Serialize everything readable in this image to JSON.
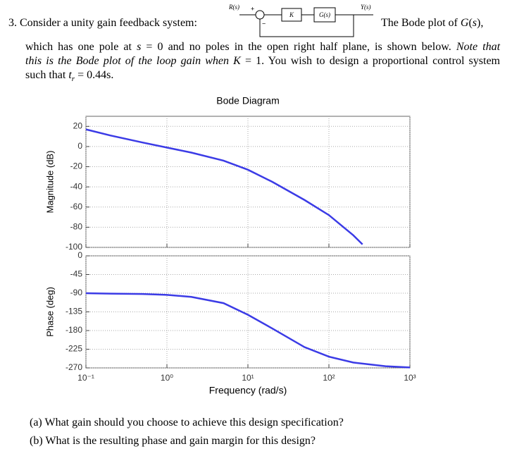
{
  "problem": {
    "number_line": [
      {
        "text": "3. Consider a unity gain feedback system:",
        "style": "normal"
      }
    ],
    "after_diagram": [
      {
        "text": "The Bode plot of ",
        "style": "normal"
      },
      {
        "text": "G",
        "style": "italic"
      },
      {
        "text": "(",
        "style": "normal"
      },
      {
        "text": "s",
        "style": "italic"
      },
      {
        "text": "),",
        "style": "normal"
      }
    ],
    "paragraph": [
      [
        {
          "text": "which has one pole at ",
          "style": "normal"
        },
        {
          "text": "s",
          "style": "italic"
        },
        {
          "text": " = 0 and no poles in the open right half plane, is shown below. ",
          "style": "normal"
        },
        {
          "text": "Note that",
          "style": "italic"
        }
      ],
      [
        {
          "text": "this is the Bode plot of the loop gain when ",
          "style": "italic"
        },
        {
          "text": "K",
          "style": "italic"
        },
        {
          "text": " = 1. You wish to design a proportional control system",
          "style": "normal"
        }
      ],
      [
        {
          "text": "such that ",
          "style": "normal"
        },
        {
          "text": "t",
          "style": "italic"
        },
        {
          "text": "r",
          "style": "sub"
        },
        {
          "text": " = 0.44s.",
          "style": "normal"
        }
      ]
    ],
    "questions": [
      "(a) What gain should you choose to achieve this design specification?",
      "(b) What is the resulting phase and gain margin for this design?"
    ]
  },
  "diagram": {
    "input": "R(s)",
    "output": "Y(s)",
    "plus": "+",
    "minus": "−",
    "controller": "K",
    "plant": "G(s)"
  },
  "chart_data": [
    {
      "type": "line",
      "title": "Bode Diagram",
      "ylabel": "Magnitude (dB)",
      "x": [
        0.1,
        0.2,
        0.5,
        1,
        2,
        5,
        10,
        20,
        50,
        100,
        200,
        260
      ],
      "values": [
        17,
        11,
        4,
        -1,
        -6,
        -14,
        -23,
        -35,
        -53,
        -68,
        -88,
        -97
      ],
      "color": "#3b3be6",
      "xscale": "log",
      "grid": true,
      "xlim": [
        0.1,
        1000
      ],
      "xticks": [
        0.1,
        1,
        10,
        100,
        1000
      ],
      "ylim": [
        -100,
        30
      ],
      "yticks": [
        -100,
        -80,
        -60,
        -40,
        -20,
        0,
        20
      ]
    },
    {
      "type": "line",
      "ylabel": "Phase (deg)",
      "xlabel": "Frequency (rad/s)",
      "x": [
        0.1,
        0.2,
        0.5,
        1,
        2,
        5,
        10,
        20,
        50,
        100,
        200,
        500,
        1000
      ],
      "values": [
        -90,
        -91,
        -92,
        -94,
        -99,
        -114,
        -142,
        -175,
        -220,
        -243,
        -257,
        -266,
        -269
      ],
      "color": "#3b3be6",
      "xscale": "log",
      "grid": true,
      "xlim": [
        0.1,
        1000
      ],
      "xticks": [
        {
          "value": 0.1,
          "label": "10⁻¹"
        },
        {
          "value": 1,
          "label": "10⁰"
        },
        {
          "value": 10,
          "label": "10¹"
        },
        {
          "value": 100,
          "label": "10²"
        },
        {
          "value": 1000,
          "label": "10³"
        }
      ],
      "ylim": [
        -270,
        0
      ],
      "yticks": [
        -270,
        -225,
        -180,
        -135,
        -90,
        -45,
        0
      ]
    }
  ]
}
